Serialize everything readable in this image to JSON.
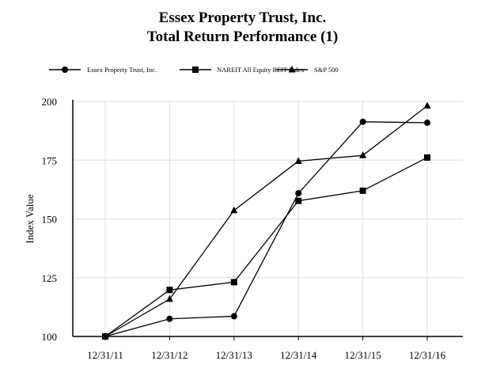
{
  "chart_data": {
    "type": "line",
    "title": "Essex Property Trust, Inc.",
    "subtitle": "Total Return Performance (1)",
    "xlabel": "",
    "ylabel": "Index Value",
    "categories": [
      "12/31/11",
      "12/31/12",
      "12/31/13",
      "12/31/14",
      "12/31/15",
      "12/31/16"
    ],
    "ylim": [
      100,
      200
    ],
    "yticks": [
      100,
      125,
      150,
      175,
      200
    ],
    "grid": true,
    "legend_placement": "top",
    "series": [
      {
        "name": "Essex Property Trust, Inc.",
        "marker": "circle",
        "values": [
          100,
          107.5,
          108.6,
          160.9,
          191.3,
          190.9
        ]
      },
      {
        "name": "NAREIT All Equity REIT Index",
        "marker": "square",
        "values": [
          100,
          119.8,
          123.1,
          157.7,
          162.0,
          176.1
        ]
      },
      {
        "name": "S&P 500",
        "marker": "triangle",
        "values": [
          100,
          115.9,
          153.6,
          174.6,
          177.0,
          198.1
        ]
      }
    ]
  }
}
